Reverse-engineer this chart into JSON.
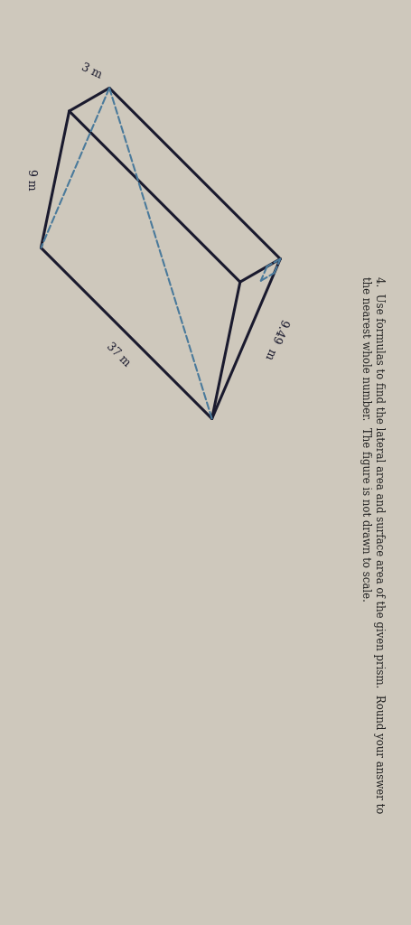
{
  "bg_color": "#cec8bc",
  "line_color": "#1a1a2e",
  "dashed_color": "#4a7a9b",
  "dim_3m": "3 m",
  "dim_9m": "9 m",
  "dim_37m": "37 m",
  "dim_949m": "9.49  m",
  "title_line1": "4.  Use formulas to find the lateral area and surface area of the given prism.  Round your answer to",
  "title_line2": "the nearest whole number.  The figure is not drawn to scale.",
  "fig_width": 4.55,
  "fig_height": 10.24,
  "lw_solid": 2.2,
  "lw_dash": 1.5,
  "label_fontsize": 9,
  "title_fontsize": 8.5
}
